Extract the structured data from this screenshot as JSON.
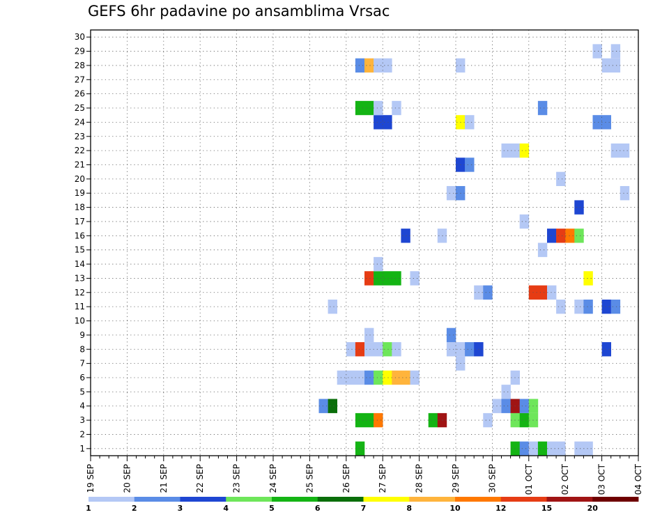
{
  "chart_data": {
    "type": "heatmap",
    "title": "GEFS 6hr padavine po ansamblima Vrsac",
    "xlabel": "",
    "ylabel": "",
    "x_ticks": [
      "19 SEP",
      "20 SEP",
      "21 SEP",
      "22 SEP",
      "23 SEP",
      "24 SEP",
      "25 SEP",
      "26 SEP",
      "27 SEP",
      "28 SEP",
      "29 SEP",
      "30 SEP",
      "01 OCT",
      "02 OCT",
      "03 OCT",
      "04 OCT"
    ],
    "y_ticks": [
      "1",
      "2",
      "3",
      "4",
      "5",
      "6",
      "7",
      "8",
      "9",
      "10",
      "11",
      "12",
      "13",
      "14",
      "15",
      "16",
      "17",
      "18",
      "19",
      "20",
      "21",
      "22",
      "23",
      "24",
      "25",
      "26",
      "27",
      "28",
      "29",
      "30"
    ],
    "x_steps_per_day": 4,
    "ylim": [
      0.5,
      30.5
    ],
    "grid": true,
    "colorbar": {
      "labels": [
        "1",
        "2",
        "3",
        "4",
        "5",
        "6",
        "7",
        "8",
        "10",
        "12",
        "15",
        "20"
      ],
      "colors": [
        "#b4c8f5",
        "#5a8ce6",
        "#1e46d2",
        "#6ee65a",
        "#14b414",
        "#0a6e0a",
        "#ffff00",
        "#ffb43c",
        "#ff7800",
        "#e63c14",
        "#a01414",
        "#6e0000"
      ]
    },
    "cells": [
      {
        "m": 1,
        "s": [
          [
            29,
            1,
            5
          ],
          [
            46,
            1,
            5
          ],
          [
            47,
            1,
            2
          ],
          [
            48,
            1,
            1
          ],
          [
            49,
            1,
            5
          ],
          [
            50,
            1,
            1
          ],
          [
            51,
            1,
            1
          ],
          [
            53,
            2,
            1
          ]
        ]
      },
      {
        "m": 3,
        "s": [
          [
            29,
            2,
            5
          ],
          [
            31,
            1,
            9
          ],
          [
            37,
            1,
            5
          ],
          [
            38,
            1,
            11
          ],
          [
            43,
            1,
            1
          ],
          [
            46,
            1,
            4
          ],
          [
            47,
            1,
            5
          ],
          [
            48,
            1,
            4
          ]
        ]
      },
      {
        "m": 4,
        "s": [
          [
            25,
            1,
            2
          ],
          [
            26,
            1,
            6
          ],
          [
            44,
            1,
            1
          ],
          [
            45,
            1,
            2
          ],
          [
            46,
            1,
            11
          ],
          [
            47,
            1,
            2
          ],
          [
            48,
            1,
            4
          ]
        ]
      },
      {
        "m": 5,
        "s": [
          [
            45,
            1,
            1
          ]
        ]
      },
      {
        "m": 6,
        "s": [
          [
            27,
            3,
            1
          ],
          [
            30,
            1,
            2
          ],
          [
            31,
            1,
            4
          ],
          [
            32,
            1,
            7
          ],
          [
            33,
            2,
            8
          ],
          [
            35,
            1,
            1
          ],
          [
            46,
            1,
            1
          ]
        ]
      },
      {
        "m": 7,
        "s": [
          [
            40,
            1,
            1
          ]
        ]
      },
      {
        "m": 8,
        "s": [
          [
            28,
            1,
            1
          ],
          [
            29,
            1,
            10
          ],
          [
            30,
            2,
            1
          ],
          [
            32,
            1,
            4
          ],
          [
            33,
            1,
            1
          ],
          [
            39,
            2,
            1
          ],
          [
            41,
            1,
            2
          ],
          [
            42,
            1,
            3
          ],
          [
            56,
            1,
            3
          ]
        ]
      },
      {
        "m": 9,
        "s": [
          [
            30,
            1,
            1
          ],
          [
            39,
            1,
            2
          ]
        ]
      },
      {
        "m": 11,
        "s": [
          [
            26,
            1,
            1
          ],
          [
            51,
            1,
            1
          ],
          [
            53,
            1,
            1
          ],
          [
            54,
            1,
            2
          ],
          [
            56,
            1,
            3
          ],
          [
            57,
            1,
            2
          ]
        ]
      },
      {
        "m": 12,
        "s": [
          [
            42,
            1,
            1
          ],
          [
            43,
            1,
            2
          ],
          [
            48,
            2,
            10
          ],
          [
            50,
            1,
            1
          ]
        ]
      },
      {
        "m": 13,
        "s": [
          [
            30,
            1,
            10
          ],
          [
            31,
            3,
            5
          ],
          [
            35,
            1,
            1
          ],
          [
            54,
            1,
            7
          ]
        ]
      },
      {
        "m": 14,
        "s": [
          [
            31,
            1,
            1
          ]
        ]
      },
      {
        "m": 15,
        "s": [
          [
            49,
            1,
            1
          ]
        ]
      },
      {
        "m": 16,
        "s": [
          [
            34,
            1,
            3
          ],
          [
            38,
            1,
            1
          ],
          [
            50,
            1,
            3
          ],
          [
            51,
            1,
            10
          ],
          [
            52,
            1,
            9
          ],
          [
            53,
            1,
            4
          ]
        ]
      },
      {
        "m": 17,
        "s": [
          [
            47,
            1,
            1
          ]
        ]
      },
      {
        "m": 18,
        "s": [
          [
            53,
            1,
            3
          ]
        ]
      },
      {
        "m": 19,
        "s": [
          [
            39,
            1,
            1
          ],
          [
            40,
            1,
            2
          ],
          [
            58,
            1,
            1
          ]
        ]
      },
      {
        "m": 20,
        "s": [
          [
            51,
            1,
            1
          ]
        ]
      },
      {
        "m": 21,
        "s": [
          [
            40,
            1,
            3
          ],
          [
            41,
            1,
            2
          ]
        ]
      },
      {
        "m": 22,
        "s": [
          [
            45,
            2,
            1
          ],
          [
            47,
            1,
            7
          ],
          [
            57,
            2,
            1
          ]
        ]
      },
      {
        "m": 24,
        "s": [
          [
            31,
            2,
            3
          ],
          [
            40,
            1,
            7
          ],
          [
            41,
            1,
            1
          ],
          [
            55,
            2,
            2
          ]
        ]
      },
      {
        "m": 25,
        "s": [
          [
            29,
            2,
            5
          ],
          [
            31,
            1,
            1
          ],
          [
            33,
            1,
            1
          ],
          [
            49,
            1,
            2
          ]
        ]
      },
      {
        "m": 28,
        "s": [
          [
            29,
            1,
            2
          ],
          [
            30,
            1,
            8
          ],
          [
            31,
            2,
            1
          ],
          [
            40,
            1,
            1
          ],
          [
            56,
            2,
            1
          ]
        ]
      },
      {
        "m": 29,
        "s": [
          [
            55,
            1,
            1
          ],
          [
            57,
            1,
            1
          ]
        ]
      }
    ]
  }
}
